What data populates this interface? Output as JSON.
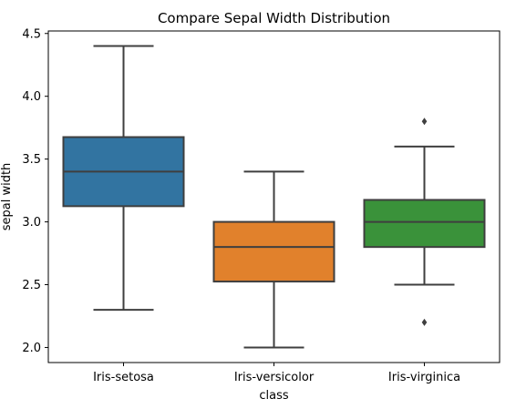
{
  "chart_data": {
    "type": "box",
    "title": "Compare Sepal Width Distribution",
    "xlabel": "class",
    "ylabel": "sepal width",
    "ylim": [
      1.88,
      4.52
    ],
    "yticks": [
      "2.0",
      "2.5",
      "3.0",
      "3.5",
      "4.0",
      "4.5"
    ],
    "grid": false,
    "categories": [
      "Iris-setosa",
      "Iris-versicolor",
      "Iris-virginica"
    ],
    "colors": [
      "#3274a1",
      "#e1812c",
      "#3a923a"
    ],
    "boxes": [
      {
        "q1": 3.125,
        "median": 3.4,
        "q3": 3.675,
        "whisker_low": 2.3,
        "whisker_high": 4.4,
        "outliers": []
      },
      {
        "q1": 2.525,
        "median": 2.8,
        "q3": 3.0,
        "whisker_low": 2.0,
        "whisker_high": 3.4,
        "outliers": []
      },
      {
        "q1": 2.8,
        "median": 3.0,
        "q3": 3.175,
        "whisker_low": 2.5,
        "whisker_high": 3.6,
        "outliers": [
          3.8,
          2.2
        ]
      }
    ]
  }
}
